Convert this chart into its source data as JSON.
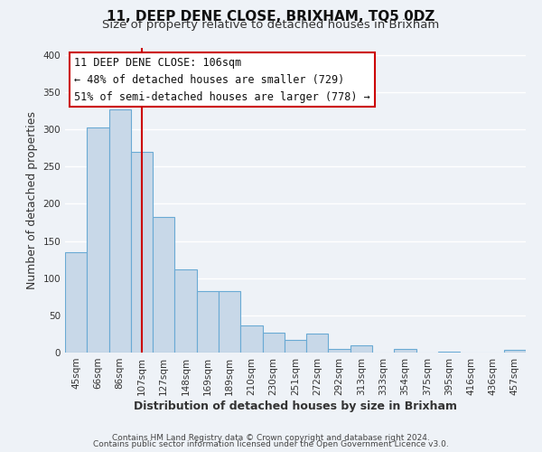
{
  "title": "11, DEEP DENE CLOSE, BRIXHAM, TQ5 0DZ",
  "subtitle": "Size of property relative to detached houses in Brixham",
  "xlabel": "Distribution of detached houses by size in Brixham",
  "ylabel": "Number of detached properties",
  "bar_labels": [
    "45sqm",
    "66sqm",
    "86sqm",
    "107sqm",
    "127sqm",
    "148sqm",
    "169sqm",
    "189sqm",
    "210sqm",
    "230sqm",
    "251sqm",
    "272sqm",
    "292sqm",
    "313sqm",
    "333sqm",
    "354sqm",
    "375sqm",
    "395sqm",
    "416sqm",
    "436sqm",
    "457sqm"
  ],
  "bar_values": [
    135,
    302,
    327,
    270,
    182,
    112,
    83,
    83,
    37,
    27,
    17,
    25,
    5,
    10,
    0,
    5,
    0,
    1,
    0,
    0,
    4
  ],
  "bar_color": "#c8d8e8",
  "bar_edge_color": "#6aaad4",
  "highlight_bar_index": 3,
  "highlight_line_color": "#cc0000",
  "ylim": [
    0,
    410
  ],
  "yticks": [
    0,
    50,
    100,
    150,
    200,
    250,
    300,
    350,
    400
  ],
  "annotation_title": "11 DEEP DENE CLOSE: 106sqm",
  "annotation_line1": "← 48% of detached houses are smaller (729)",
  "annotation_line2": "51% of semi-detached houses are larger (778) →",
  "annotation_box_color": "#ffffff",
  "annotation_box_edge": "#cc0000",
  "footer_line1": "Contains HM Land Registry data © Crown copyright and database right 2024.",
  "footer_line2": "Contains public sector information licensed under the Open Government Licence v3.0.",
  "background_color": "#eef2f7",
  "grid_color": "#ffffff",
  "title_fontsize": 11,
  "subtitle_fontsize": 9.5,
  "axis_label_fontsize": 9,
  "tick_fontsize": 7.5,
  "annotation_fontsize": 8.5,
  "footer_fontsize": 6.5
}
